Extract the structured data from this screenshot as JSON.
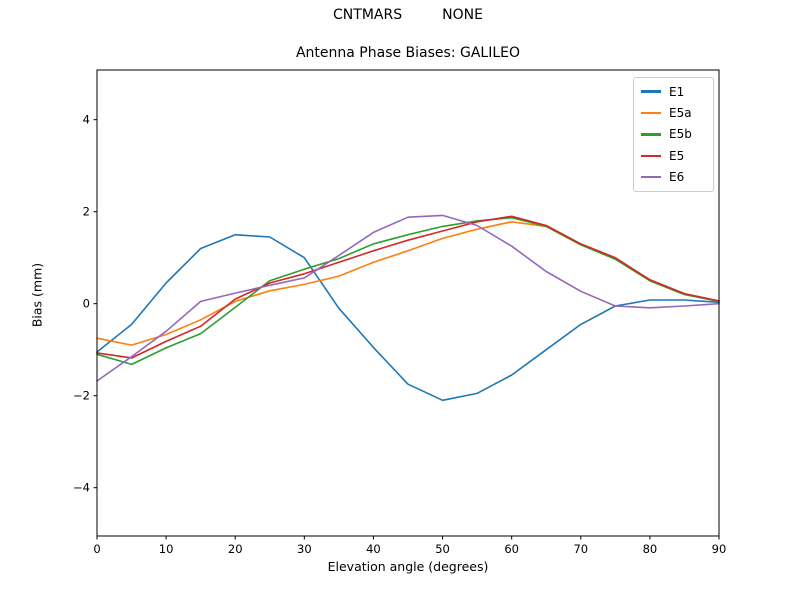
{
  "figure": {
    "background": "#ffffff",
    "frame_color": "#000000",
    "legend_border_color": "#cccccc"
  },
  "chart_data": {
    "type": "line",
    "suptitle": "CNTMARS         NONE",
    "title": "Antenna Phase Biases: GALILEO",
    "xlabel": "Elevation angle (degrees)",
    "ylabel": "Bias (mm)",
    "xlim": [
      0,
      90
    ],
    "ylim": [
      -5.05,
      5.08
    ],
    "xticks": [
      0,
      10,
      20,
      30,
      40,
      50,
      60,
      70,
      80,
      90
    ],
    "yticks": [
      -4,
      -2,
      0,
      2,
      4
    ],
    "grid": false,
    "legend_position": "upper right",
    "x": [
      0,
      5,
      10,
      15,
      20,
      25,
      30,
      35,
      40,
      45,
      50,
      55,
      60,
      65,
      70,
      75,
      80,
      85,
      90
    ],
    "series": [
      {
        "name": "E1",
        "color": "#1f77b4",
        "values": [
          -1.05,
          -0.45,
          0.45,
          1.2,
          1.5,
          1.45,
          1.0,
          -0.1,
          -0.95,
          -1.75,
          -2.1,
          -1.95,
          -1.55,
          -1.0,
          -0.45,
          -0.05,
          0.08,
          0.08,
          0.03
        ]
      },
      {
        "name": "E5a",
        "color": "#ff7f0e",
        "values": [
          -0.75,
          -0.9,
          -0.67,
          -0.35,
          0.05,
          0.28,
          0.42,
          0.6,
          0.9,
          1.15,
          1.42,
          1.62,
          1.78,
          1.68,
          1.28,
          0.97,
          0.5,
          0.2,
          0.05
        ]
      },
      {
        "name": "E5b",
        "color": "#2ca02c",
        "values": [
          -1.1,
          -1.32,
          -0.96,
          -0.65,
          -0.08,
          0.5,
          0.75,
          0.98,
          1.3,
          1.5,
          1.68,
          1.8,
          1.87,
          1.68,
          1.28,
          0.97,
          0.5,
          0.2,
          0.05
        ]
      },
      {
        "name": "E5",
        "color": "#d62728",
        "values": [
          -1.07,
          -1.18,
          -0.82,
          -0.49,
          0.1,
          0.45,
          0.65,
          0.9,
          1.15,
          1.38,
          1.58,
          1.78,
          1.9,
          1.7,
          1.3,
          1.0,
          0.52,
          0.22,
          0.06
        ]
      },
      {
        "name": "E6",
        "color": "#9467bd",
        "values": [
          -1.68,
          -1.15,
          -0.6,
          0.05,
          0.23,
          0.4,
          0.56,
          1.05,
          1.55,
          1.88,
          1.92,
          1.7,
          1.25,
          0.7,
          0.27,
          -0.05,
          -0.09,
          -0.05,
          0.0
        ]
      }
    ]
  }
}
